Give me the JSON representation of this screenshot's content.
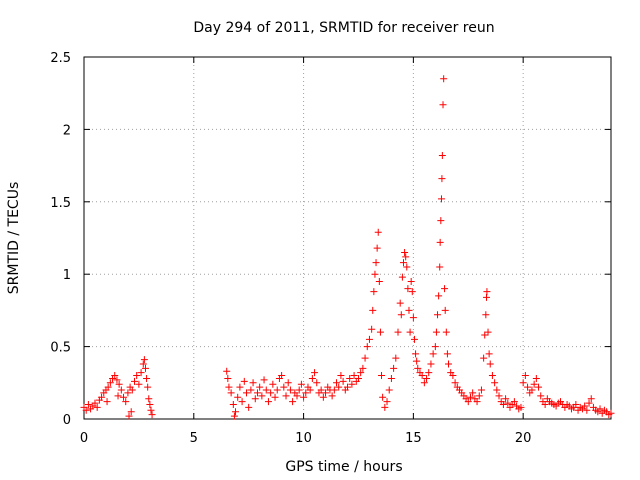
{
  "chart_data": {
    "type": "scatter",
    "title": "Day 294 of 2011, SRMTID for receiver reun",
    "xlabel": "GPS time / hours",
    "ylabel": "SRMTID / TECUs",
    "xlim": [
      0,
      24
    ],
    "ylim": [
      0,
      2.5
    ],
    "xticks": [
      0,
      5,
      10,
      15,
      20
    ],
    "xtick_labels": [
      "0",
      "5",
      "10",
      "15",
      "20"
    ],
    "yticks": [
      0,
      0.5,
      1,
      1.5,
      2,
      2.5
    ],
    "ytick_labels": [
      "0",
      "0.5",
      "1",
      "1.5",
      "2",
      "2.5"
    ],
    "grid": true,
    "marker": "+",
    "color": "#ff0000",
    "series": [
      {
        "name": "SRMTID",
        "points": [
          [
            0.0,
            0.08
          ],
          [
            0.1,
            0.06
          ],
          [
            0.2,
            0.1
          ],
          [
            0.3,
            0.07
          ],
          [
            0.4,
            0.09
          ],
          [
            0.5,
            0.11
          ],
          [
            0.6,
            0.08
          ],
          [
            0.7,
            0.13
          ],
          [
            0.8,
            0.15
          ],
          [
            0.9,
            0.18
          ],
          [
            1.0,
            0.2
          ],
          [
            1.1,
            0.22
          ],
          [
            1.2,
            0.25
          ],
          [
            1.3,
            0.28
          ],
          [
            1.4,
            0.3
          ],
          [
            1.5,
            0.27
          ],
          [
            1.6,
            0.24
          ],
          [
            1.7,
            0.2
          ],
          [
            1.8,
            0.15
          ],
          [
            1.9,
            0.12
          ],
          [
            2.0,
            0.18
          ],
          [
            2.1,
            0.22
          ],
          [
            2.2,
            0.2
          ],
          [
            2.3,
            0.26
          ],
          [
            2.4,
            0.3
          ],
          [
            2.5,
            0.24
          ],
          [
            2.6,
            0.32
          ],
          [
            2.7,
            0.38
          ],
          [
            2.75,
            0.41
          ],
          [
            2.8,
            0.35
          ],
          [
            2.85,
            0.28
          ],
          [
            2.9,
            0.22
          ],
          [
            2.95,
            0.14
          ],
          [
            3.0,
            0.1
          ],
          [
            3.05,
            0.06
          ],
          [
            3.1,
            0.03
          ],
          [
            1.05,
            0.12
          ],
          [
            1.55,
            0.16
          ],
          [
            2.05,
            0.02
          ],
          [
            2.15,
            0.05
          ],
          [
            6.5,
            0.33
          ],
          [
            6.55,
            0.28
          ],
          [
            6.6,
            0.22
          ],
          [
            6.7,
            0.18
          ],
          [
            6.8,
            0.1
          ],
          [
            6.85,
            0.02
          ],
          [
            6.9,
            0.05
          ],
          [
            7.0,
            0.15
          ],
          [
            7.1,
            0.22
          ],
          [
            7.2,
            0.12
          ],
          [
            7.3,
            0.26
          ],
          [
            7.4,
            0.18
          ],
          [
            7.5,
            0.08
          ],
          [
            7.6,
            0.2
          ],
          [
            7.7,
            0.25
          ],
          [
            7.8,
            0.14
          ],
          [
            7.9,
            0.18
          ],
          [
            8.0,
            0.22
          ],
          [
            8.1,
            0.16
          ],
          [
            8.2,
            0.27
          ],
          [
            8.3,
            0.2
          ],
          [
            8.4,
            0.12
          ],
          [
            8.5,
            0.18
          ],
          [
            8.6,
            0.24
          ],
          [
            8.7,
            0.15
          ],
          [
            8.8,
            0.2
          ],
          [
            8.9,
            0.28
          ],
          [
            9.0,
            0.3
          ],
          [
            9.1,
            0.22
          ],
          [
            9.2,
            0.16
          ],
          [
            9.3,
            0.25
          ],
          [
            9.4,
            0.2
          ],
          [
            9.5,
            0.12
          ],
          [
            9.6,
            0.18
          ],
          [
            9.7,
            0.16
          ],
          [
            9.8,
            0.2
          ],
          [
            9.9,
            0.24
          ],
          [
            10.0,
            0.15
          ],
          [
            10.1,
            0.18
          ],
          [
            10.2,
            0.22
          ],
          [
            10.3,
            0.2
          ],
          [
            10.4,
            0.28
          ],
          [
            10.5,
            0.32
          ],
          [
            10.6,
            0.25
          ],
          [
            10.7,
            0.18
          ],
          [
            10.8,
            0.2
          ],
          [
            10.9,
            0.15
          ],
          [
            11.0,
            0.18
          ],
          [
            11.1,
            0.22
          ],
          [
            11.2,
            0.2
          ],
          [
            11.3,
            0.16
          ],
          [
            11.4,
            0.2
          ],
          [
            11.5,
            0.25
          ],
          [
            11.6,
            0.22
          ],
          [
            11.7,
            0.3
          ],
          [
            11.8,
            0.26
          ],
          [
            11.9,
            0.2
          ],
          [
            12.0,
            0.22
          ],
          [
            12.1,
            0.28
          ],
          [
            12.2,
            0.24
          ],
          [
            12.3,
            0.3
          ],
          [
            12.4,
            0.26
          ],
          [
            12.5,
            0.28
          ],
          [
            12.6,
            0.32
          ],
          [
            12.7,
            0.35
          ],
          [
            12.8,
            0.42
          ],
          [
            12.9,
            0.5
          ],
          [
            13.0,
            0.55
          ],
          [
            13.1,
            0.62
          ],
          [
            13.15,
            0.75
          ],
          [
            13.2,
            0.88
          ],
          [
            13.25,
            1.0
          ],
          [
            13.3,
            1.08
          ],
          [
            13.35,
            1.18
          ],
          [
            13.4,
            1.29
          ],
          [
            13.45,
            0.95
          ],
          [
            13.5,
            0.6
          ],
          [
            13.55,
            0.3
          ],
          [
            13.6,
            0.15
          ],
          [
            13.7,
            0.08
          ],
          [
            13.8,
            0.12
          ],
          [
            13.9,
            0.2
          ],
          [
            14.0,
            0.28
          ],
          [
            14.1,
            0.35
          ],
          [
            14.2,
            0.42
          ],
          [
            14.3,
            0.6
          ],
          [
            14.4,
            0.8
          ],
          [
            14.45,
            0.72
          ],
          [
            14.5,
            0.98
          ],
          [
            14.55,
            1.08
          ],
          [
            14.6,
            1.15
          ],
          [
            14.65,
            1.12
          ],
          [
            14.7,
            1.05
          ],
          [
            14.75,
            0.9
          ],
          [
            14.8,
            0.75
          ],
          [
            14.85,
            0.6
          ],
          [
            14.9,
            0.95
          ],
          [
            14.95,
            0.88
          ],
          [
            15.0,
            0.7
          ],
          [
            15.05,
            0.55
          ],
          [
            15.1,
            0.45
          ],
          [
            15.15,
            0.4
          ],
          [
            15.2,
            0.35
          ],
          [
            15.3,
            0.32
          ],
          [
            15.4,
            0.3
          ],
          [
            15.5,
            0.25
          ],
          [
            15.6,
            0.28
          ],
          [
            15.7,
            0.32
          ],
          [
            15.8,
            0.38
          ],
          [
            15.9,
            0.45
          ],
          [
            16.0,
            0.5
          ],
          [
            16.05,
            0.6
          ],
          [
            16.1,
            0.72
          ],
          [
            16.15,
            0.85
          ],
          [
            16.2,
            1.05
          ],
          [
            16.22,
            1.22
          ],
          [
            16.25,
            1.37
          ],
          [
            16.28,
            1.52
          ],
          [
            16.3,
            1.66
          ],
          [
            16.32,
            1.82
          ],
          [
            16.35,
            2.17
          ],
          [
            16.38,
            2.35
          ],
          [
            16.42,
            0.9
          ],
          [
            16.45,
            0.75
          ],
          [
            16.5,
            0.6
          ],
          [
            16.55,
            0.45
          ],
          [
            16.6,
            0.38
          ],
          [
            16.7,
            0.32
          ],
          [
            16.8,
            0.3
          ],
          [
            16.9,
            0.25
          ],
          [
            17.0,
            0.22
          ],
          [
            17.1,
            0.2
          ],
          [
            17.2,
            0.18
          ],
          [
            17.3,
            0.16
          ],
          [
            17.4,
            0.14
          ],
          [
            17.5,
            0.12
          ],
          [
            17.6,
            0.15
          ],
          [
            17.7,
            0.18
          ],
          [
            17.8,
            0.14
          ],
          [
            17.9,
            0.12
          ],
          [
            18.0,
            0.16
          ],
          [
            18.1,
            0.2
          ],
          [
            18.2,
            0.42
          ],
          [
            18.25,
            0.58
          ],
          [
            18.3,
            0.72
          ],
          [
            18.33,
            0.84
          ],
          [
            18.35,
            0.88
          ],
          [
            18.4,
            0.6
          ],
          [
            18.45,
            0.45
          ],
          [
            18.5,
            0.38
          ],
          [
            18.6,
            0.3
          ],
          [
            18.7,
            0.25
          ],
          [
            18.8,
            0.2
          ],
          [
            18.9,
            0.16
          ],
          [
            19.0,
            0.12
          ],
          [
            19.1,
            0.1
          ],
          [
            19.2,
            0.14
          ],
          [
            19.3,
            0.11
          ],
          [
            19.4,
            0.08
          ],
          [
            19.5,
            0.1
          ],
          [
            19.6,
            0.12
          ],
          [
            19.7,
            0.09
          ],
          [
            19.8,
            0.07
          ],
          [
            19.9,
            0.08
          ],
          [
            20.0,
            0.25
          ],
          [
            20.1,
            0.3
          ],
          [
            20.2,
            0.22
          ],
          [
            20.3,
            0.18
          ],
          [
            20.4,
            0.2
          ],
          [
            20.5,
            0.24
          ],
          [
            20.6,
            0.28
          ],
          [
            20.7,
            0.22
          ],
          [
            20.8,
            0.16
          ],
          [
            20.9,
            0.12
          ],
          [
            21.0,
            0.1
          ],
          [
            21.1,
            0.14
          ],
          [
            21.2,
            0.12
          ],
          [
            21.3,
            0.11
          ],
          [
            21.4,
            0.1
          ],
          [
            21.5,
            0.09
          ],
          [
            21.6,
            0.11
          ],
          [
            21.7,
            0.12
          ],
          [
            21.8,
            0.1
          ],
          [
            21.9,
            0.08
          ],
          [
            22.0,
            0.1
          ],
          [
            22.1,
            0.09
          ],
          [
            22.2,
            0.07
          ],
          [
            22.3,
            0.08
          ],
          [
            22.4,
            0.1
          ],
          [
            22.5,
            0.06
          ],
          [
            22.6,
            0.08
          ],
          [
            22.7,
            0.07
          ],
          [
            22.8,
            0.09
          ],
          [
            22.9,
            0.06
          ],
          [
            23.0,
            0.11
          ],
          [
            23.1,
            0.14
          ],
          [
            23.2,
            0.08
          ],
          [
            23.3,
            0.06
          ],
          [
            23.4,
            0.05
          ],
          [
            23.5,
            0.07
          ],
          [
            23.6,
            0.04
          ],
          [
            23.7,
            0.06
          ],
          [
            23.8,
            0.05
          ],
          [
            23.9,
            0.03
          ],
          [
            24.0,
            0.04
          ]
        ]
      }
    ]
  }
}
